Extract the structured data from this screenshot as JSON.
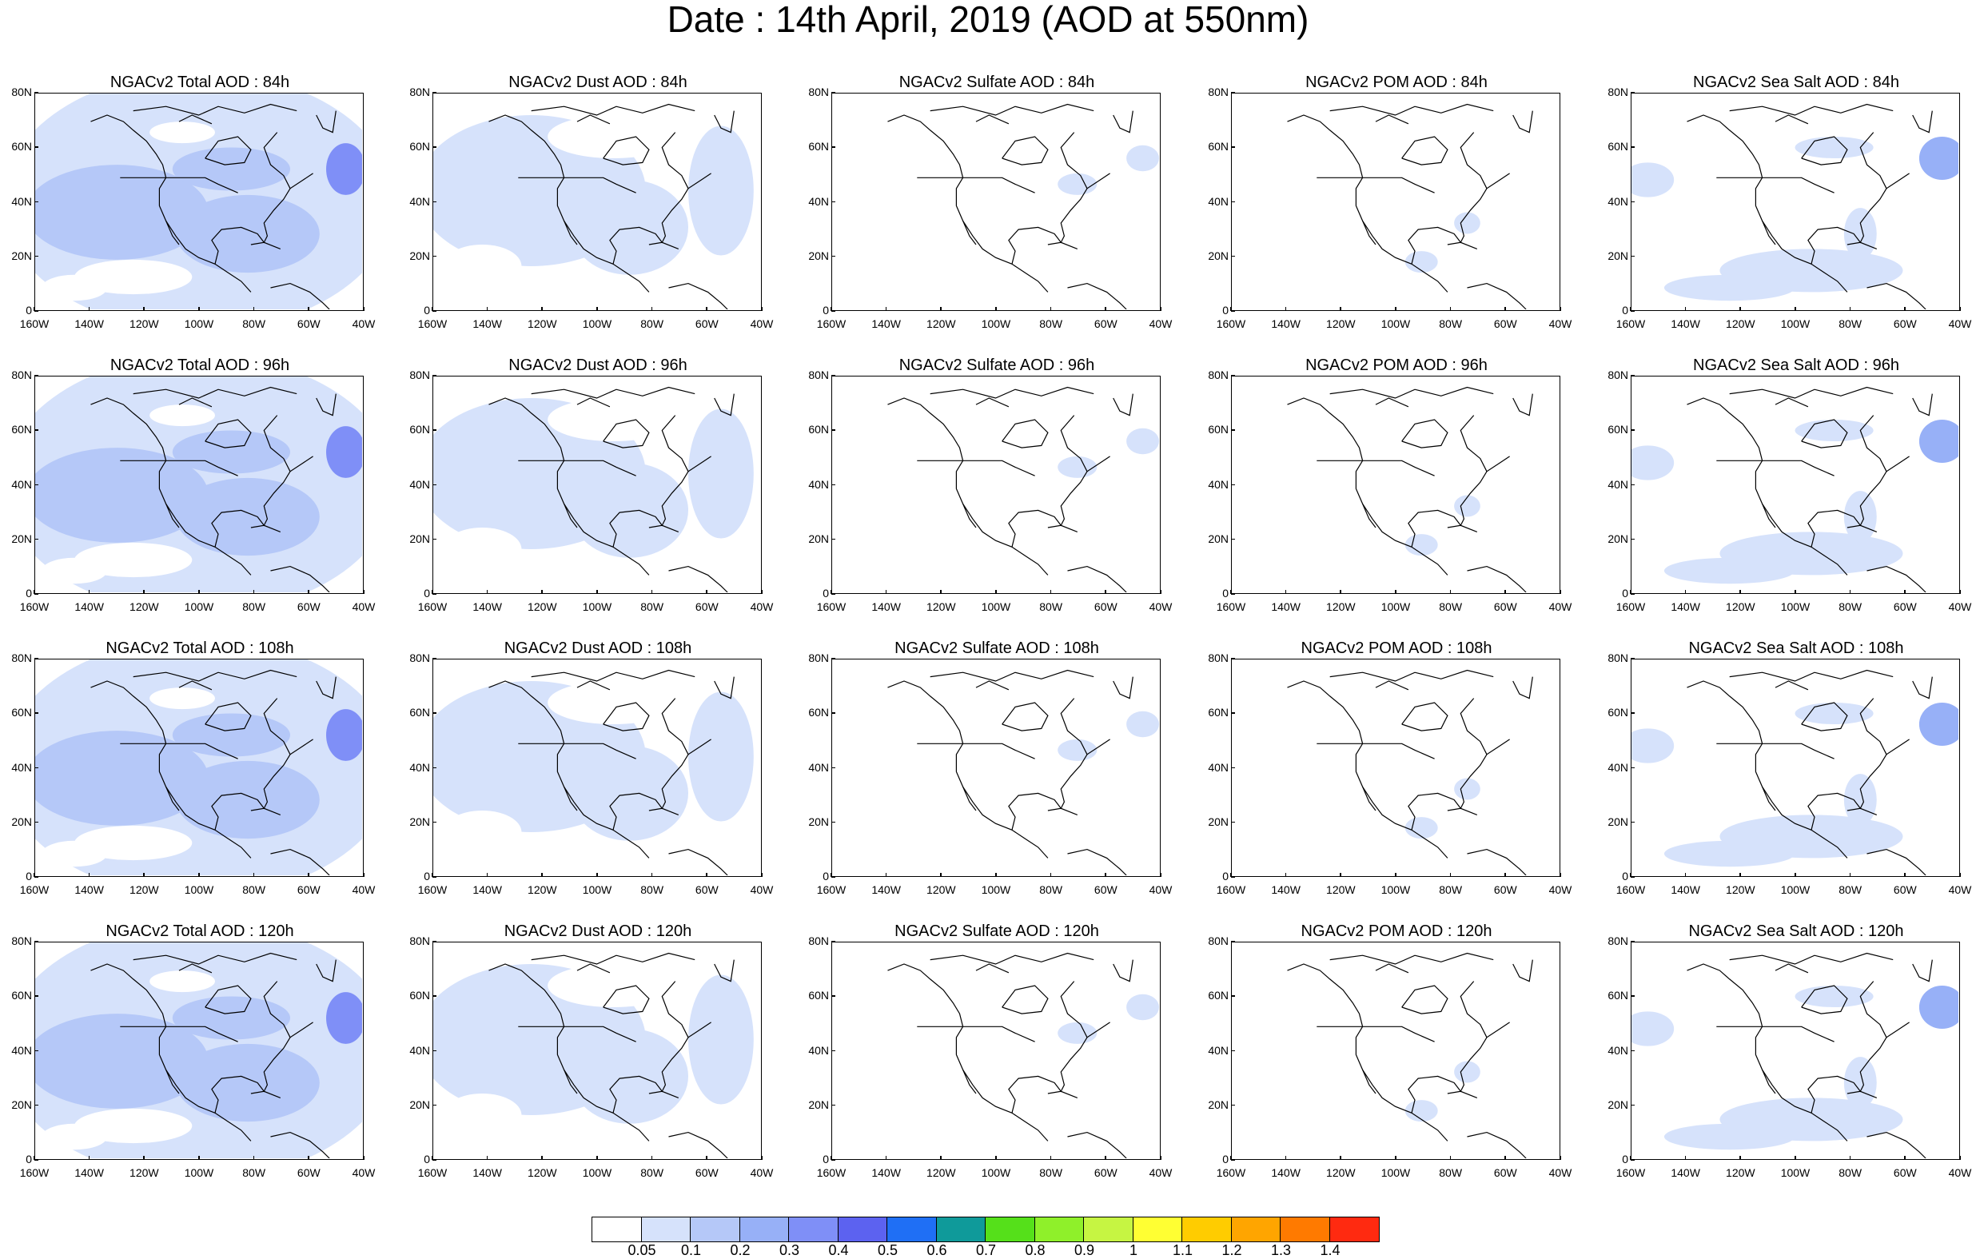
{
  "title": "Date : 14th April, 2019 (AOD at 550nm)",
  "lat_labels": [
    "80N",
    "60N",
    "40N",
    "20N",
    "0"
  ],
  "lon_labels": [
    "160W",
    "140W",
    "120W",
    "100W",
    "80W",
    "60W",
    "40W"
  ],
  "panels": [
    {
      "title": "NGACv2 Total AOD : 84h",
      "species": "total",
      "level": 2
    },
    {
      "title": "NGACv2 Dust AOD : 84h",
      "species": "dust",
      "level": 1
    },
    {
      "title": "NGACv2 Sulfate AOD : 84h",
      "species": "sulfate",
      "level": 0
    },
    {
      "title": "NGACv2 POM AOD : 84h",
      "species": "pom",
      "level": 0
    },
    {
      "title": "NGACv2 Sea Salt AOD : 84h",
      "species": "seasalt",
      "level": 1
    },
    {
      "title": "NGACv2 Total AOD : 96h",
      "species": "total",
      "level": 2
    },
    {
      "title": "NGACv2 Dust AOD : 96h",
      "species": "dust",
      "level": 1
    },
    {
      "title": "NGACv2 Sulfate AOD : 96h",
      "species": "sulfate",
      "level": 0
    },
    {
      "title": "NGACv2 POM AOD : 96h",
      "species": "pom",
      "level": 0
    },
    {
      "title": "NGACv2 Sea Salt AOD : 96h",
      "species": "seasalt",
      "level": 1
    },
    {
      "title": "NGACv2 Total AOD : 108h",
      "species": "total",
      "level": 2
    },
    {
      "title": "NGACv2 Dust AOD : 108h",
      "species": "dust",
      "level": 1
    },
    {
      "title": "NGACv2 Sulfate AOD : 108h",
      "species": "sulfate",
      "level": 0
    },
    {
      "title": "NGACv2 POM AOD : 108h",
      "species": "pom",
      "level": 0
    },
    {
      "title": "NGACv2 Sea Salt AOD : 108h",
      "species": "seasalt",
      "level": 1
    },
    {
      "title": "NGACv2 Total AOD : 120h",
      "species": "total",
      "level": 2
    },
    {
      "title": "NGACv2 Dust AOD : 120h",
      "species": "dust",
      "level": 1
    },
    {
      "title": "NGACv2 Sulfate AOD : 120h",
      "species": "sulfate",
      "level": 0
    },
    {
      "title": "NGACv2 POM AOD : 120h",
      "species": "pom",
      "level": 0
    },
    {
      "title": "NGACv2 Sea Salt  AOD : 120h",
      "species": "seasalt",
      "level": 1
    }
  ],
  "colorbar": {
    "colors": [
      "#ffffff",
      "#d6e2fb",
      "#b5c8f8",
      "#97b0f7",
      "#7f8ff7",
      "#5c62f0",
      "#1f6ff5",
      "#0f9a9a",
      "#55e01a",
      "#8ff02a",
      "#c6f542",
      "#ffff33",
      "#ffcc00",
      "#ffa500",
      "#ff7a00",
      "#ff2a10"
    ],
    "labels": [
      "0.05",
      "0.1",
      "0.2",
      "0.3",
      "0.4",
      "0.5",
      "0.6",
      "0.7",
      "0.8",
      "0.9",
      "1",
      "1.1",
      "1.2",
      "1.3",
      "1.4"
    ]
  }
}
